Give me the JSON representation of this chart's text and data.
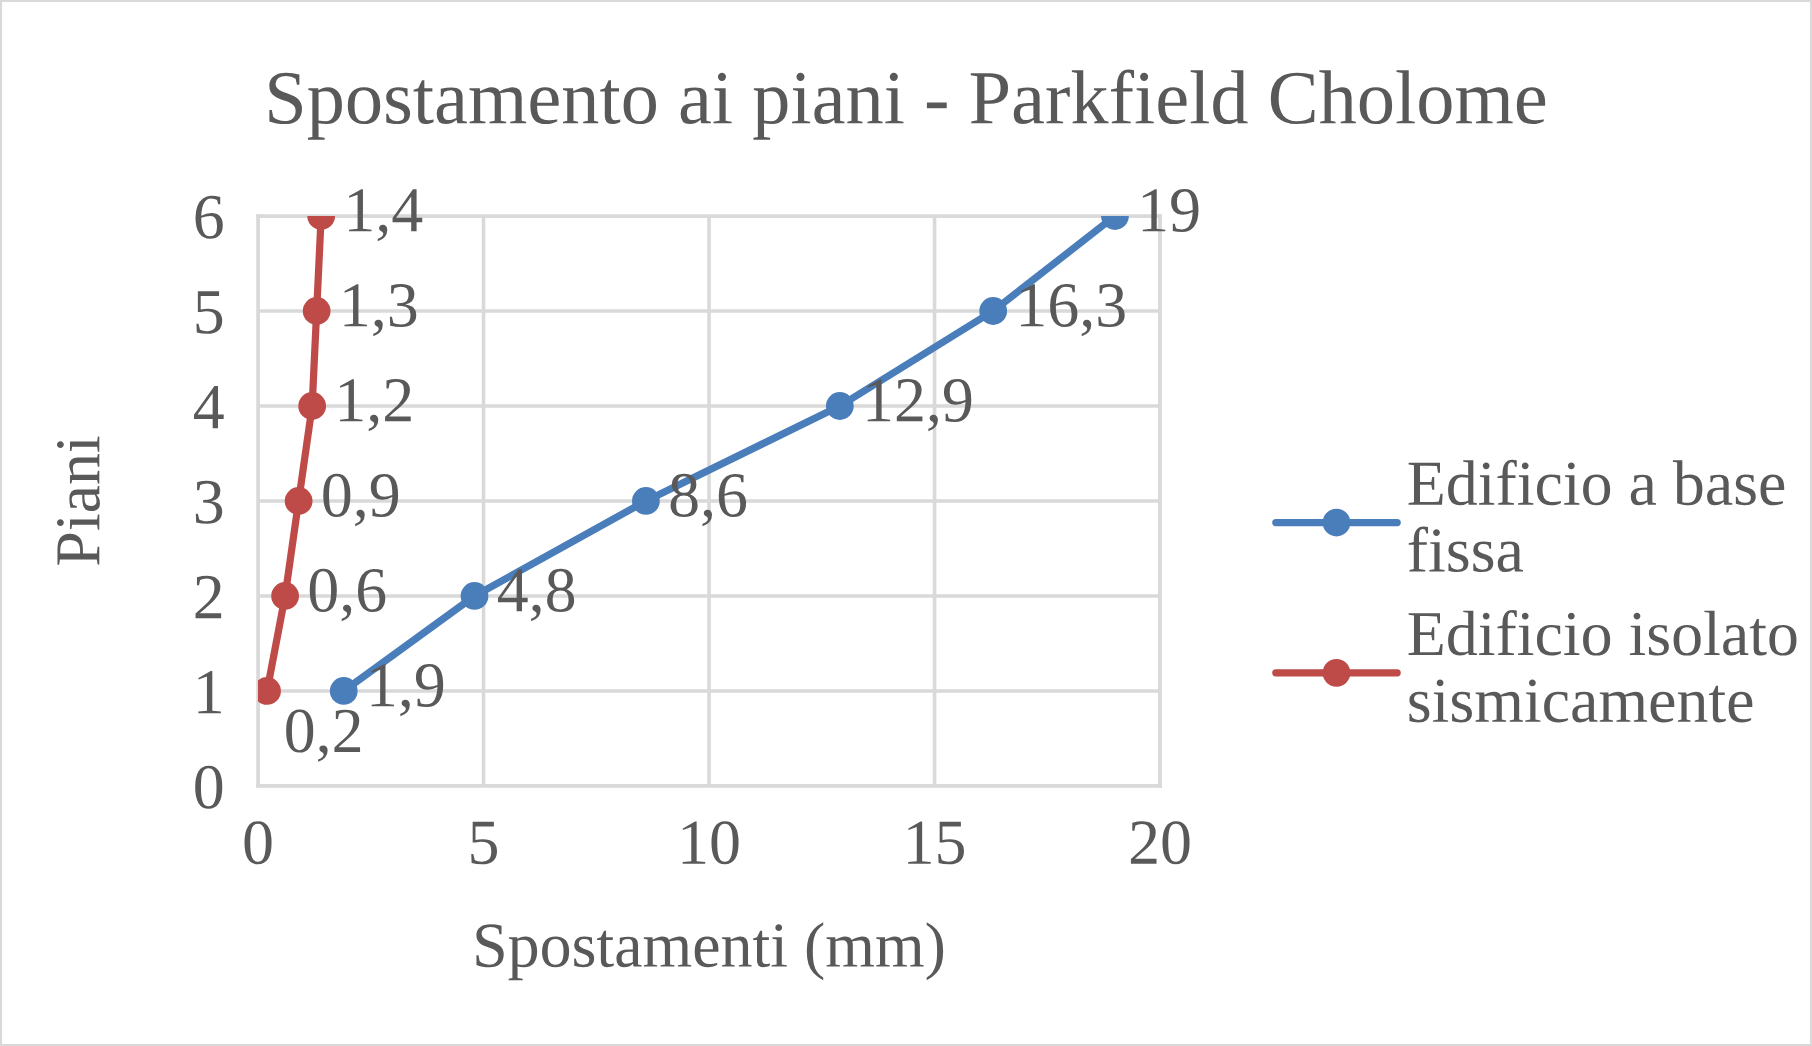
{
  "chart_data": {
    "type": "line",
    "orientation": "horizontal",
    "title": "Spostamento ai piani - Parkfield Cholome",
    "xlabel": "Spostamenti (mm)",
    "ylabel": "Piani",
    "xlim": [
      0,
      20
    ],
    "xticks": [
      0,
      5,
      10,
      15,
      20
    ],
    "ylim": [
      0,
      6
    ],
    "yticks": [
      0,
      1,
      2,
      3,
      4,
      5,
      6
    ],
    "grid": true,
    "legend": "right",
    "marker": "circle",
    "line_style": "solid",
    "series": [
      {
        "name": "Edificio a base fissa",
        "color": "#4a7ebb",
        "x": [
          1,
          2,
          3,
          4,
          5,
          6
        ],
        "values": [
          1.9,
          4.8,
          8.6,
          12.9,
          16.3,
          19
        ],
        "value_labels": [
          "1,9",
          "4,8",
          "8,6",
          "12,9",
          "16,3",
          "19"
        ]
      },
      {
        "name": "Edificio isolato sismicamente",
        "color": "#be4b48",
        "x": [
          1,
          2,
          3,
          4,
          5,
          6
        ],
        "values": [
          0.2,
          0.6,
          0.9,
          1.2,
          1.3,
          1.4
        ],
        "value_labels": [
          "0,2",
          "0,6",
          "0,9",
          "1,2",
          "1,3",
          "1,4"
        ]
      }
    ]
  }
}
